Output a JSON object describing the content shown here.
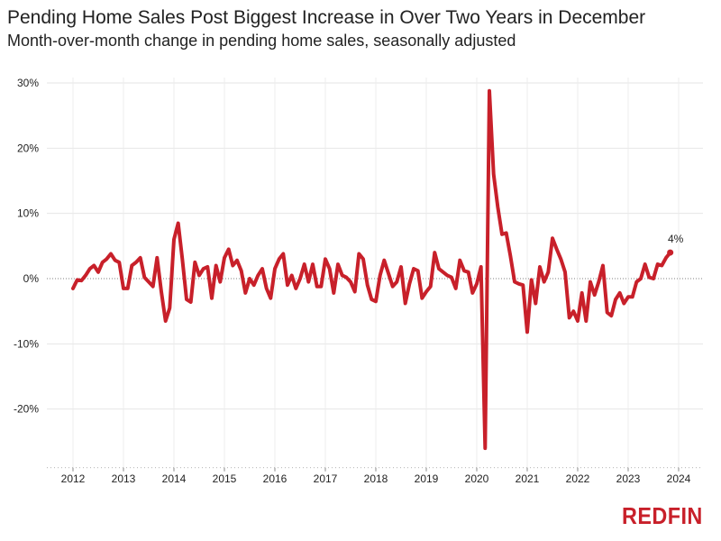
{
  "chart_data": {
    "type": "line",
    "title": "Pending Home Sales Post Biggest Increase in Over Two Years in December",
    "subtitle": "Month-over-month change in pending home sales, seasonally adjusted",
    "xlabel": "",
    "ylabel": "",
    "ylim": [
      -29,
      31
    ],
    "yticks": [
      30,
      20,
      10,
      0,
      -10,
      -20
    ],
    "ytick_labels": [
      "30%",
      "20%",
      "10%",
      "0%",
      "-10%",
      "-20%"
    ],
    "xticks": [
      2012,
      2013,
      2014,
      2015,
      2016,
      2017,
      2018,
      2019,
      2020,
      2021,
      2022,
      2023,
      2024
    ],
    "xtick_labels": [
      "2012",
      "2013",
      "2014",
      "2015",
      "2016",
      "2017",
      "2018",
      "2019",
      "2020",
      "2021",
      "2022",
      "2023",
      "2024"
    ],
    "grid": true,
    "zero_line": "dotted",
    "series": [
      {
        "name": "Pending home sales, MoM change (%)",
        "color": "#c8202a",
        "start_year": 2012,
        "start_month": 1,
        "values": [
          -1.5,
          -0.2,
          -0.3,
          0.5,
          1.5,
          2.0,
          1.0,
          2.5,
          3.0,
          3.8,
          2.8,
          2.5,
          -1.5,
          -1.5,
          2.0,
          2.5,
          3.2,
          0.2,
          -0.5,
          -1.2,
          3.2,
          -2.0,
          -6.5,
          -4.5,
          6.0,
          8.5,
          3.0,
          -3.2,
          -3.6,
          2.5,
          0.5,
          1.5,
          1.8,
          -3.0,
          2.0,
          -0.5,
          3.2,
          4.5,
          2.0,
          2.8,
          1.2,
          -2.2,
          0.0,
          -1.0,
          0.5,
          1.5,
          -1.5,
          -3.0,
          1.5,
          3.0,
          3.8,
          -1.0,
          0.5,
          -1.5,
          0.0,
          2.2,
          -0.5,
          2.2,
          -1.2,
          -1.2,
          3.0,
          1.5,
          -2.2,
          2.2,
          0.5,
          0.2,
          -0.5,
          -2.0,
          3.8,
          3.0,
          -1.0,
          -3.2,
          -3.5,
          0.5,
          2.8,
          0.8,
          -1.2,
          -0.5,
          1.8,
          -3.8,
          -0.8,
          1.5,
          1.2,
          -3.0,
          -2.0,
          -1.2,
          4.0,
          1.5,
          1.0,
          0.5,
          0.2,
          -1.5,
          2.8,
          1.2,
          1.0,
          -2.2,
          -0.8,
          1.8,
          -26.0,
          28.8,
          16.0,
          11.0,
          6.8,
          7.0,
          3.5,
          -0.5,
          -0.8,
          -1.0,
          -8.2,
          -0.2,
          -3.8,
          1.8,
          -0.5,
          1.0,
          6.2,
          4.5,
          3.0,
          1.0,
          -6.0,
          -5.0,
          -6.5,
          -2.2,
          -6.5,
          -0.5,
          -2.5,
          -0.5,
          2.0,
          -5.2,
          -5.7,
          -3.2,
          -2.2,
          -3.8,
          -2.8,
          -2.8,
          -0.5,
          0.0,
          2.2,
          0.2,
          0.0,
          2.2,
          2.0,
          3.2,
          4.0
        ],
        "end_label": "4%"
      }
    ]
  },
  "brand": {
    "name": "REDFIN",
    "color": "#c8202a"
  }
}
